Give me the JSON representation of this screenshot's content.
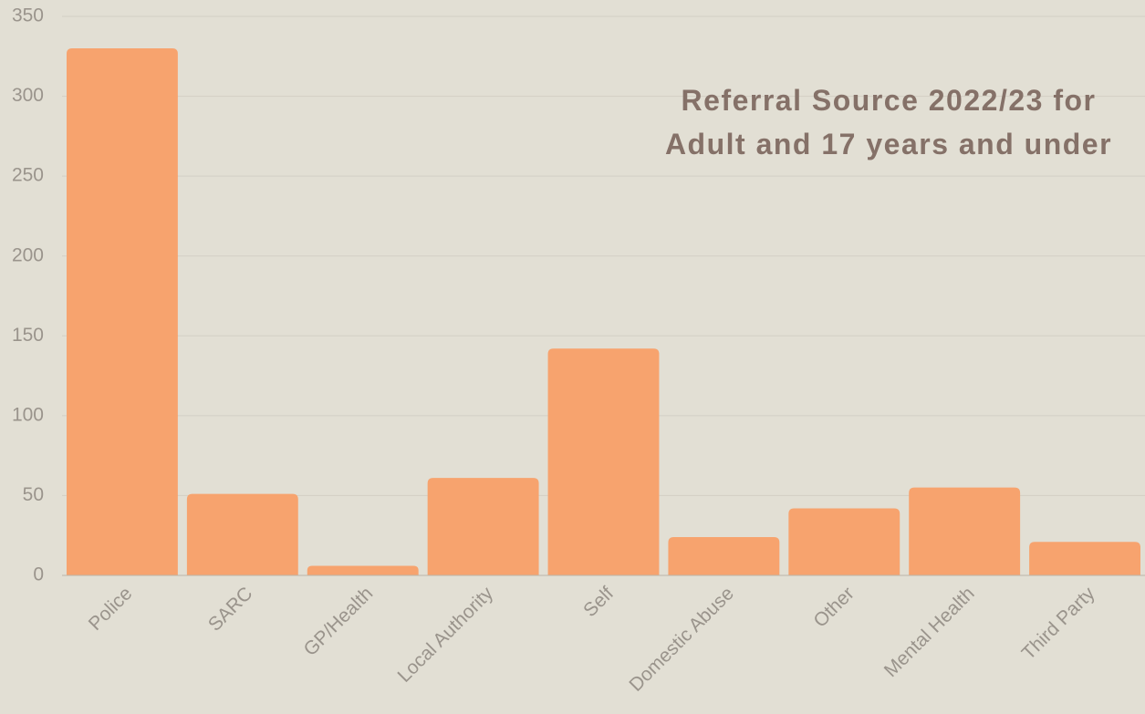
{
  "chart_data": {
    "type": "bar",
    "title": [
      "Referral Source 2022/23 for",
      "Adult and 17 years and under"
    ],
    "categories": [
      "Police",
      "SARC",
      "GP/Health",
      "Local Authority",
      "Self",
      "Domestic Abuse",
      "Other",
      "Mental Health",
      "Third Party"
    ],
    "values": [
      330,
      51,
      6,
      61,
      142,
      24,
      42,
      55,
      21
    ],
    "color": "#f7a36e",
    "ylim": [
      0,
      350
    ],
    "yticks": [
      0,
      50,
      100,
      150,
      200,
      250,
      300,
      350
    ],
    "grid": true
  }
}
